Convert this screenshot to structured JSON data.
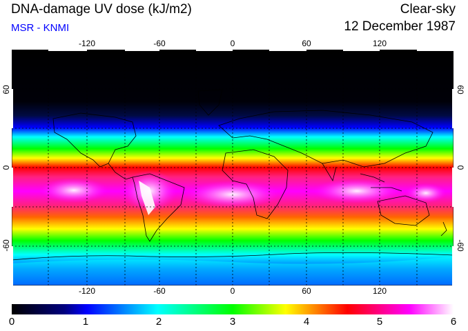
{
  "header": {
    "title": "DNA-damage UV dose (kJ/m2)",
    "subtitle": "MSR - KNMI",
    "sky_condition": "Clear-sky",
    "date": "12 December 1987"
  },
  "map": {
    "projection": "equirectangular",
    "lon_range": [
      -180,
      180
    ],
    "lat_range": [
      -90,
      90
    ],
    "lon_ticks": [
      "-120",
      "-60",
      "0",
      "60",
      "120"
    ],
    "lat_ticks": [
      "60",
      "0",
      "-60"
    ],
    "gridlines": "dashed every 30 degrees"
  },
  "colorbar": {
    "min": 0,
    "max": 6,
    "labels": [
      "0",
      "1",
      "2",
      "3",
      "4",
      "5",
      "6"
    ],
    "colors": [
      "#000000",
      "#0022ff",
      "#00ffff",
      "#00ff00",
      "#ffff00",
      "#ff0000",
      "#ff00ff",
      "#ffffff"
    ]
  }
}
